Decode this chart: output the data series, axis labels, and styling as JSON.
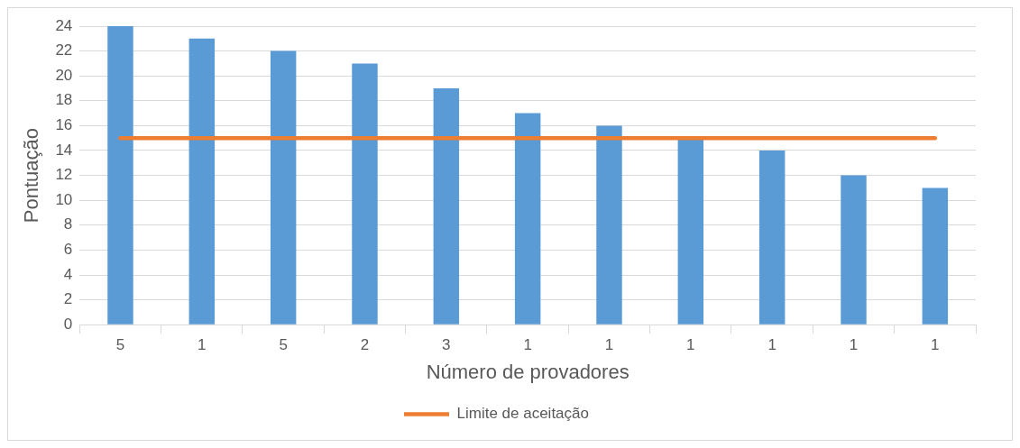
{
  "chart_data": {
    "type": "bar",
    "xlabel": "Número de provadores",
    "ylabel": "Pontuação",
    "categories": [
      "5",
      "1",
      "5",
      "2",
      "3",
      "1",
      "1",
      "1",
      "1",
      "1",
      "1"
    ],
    "series": [
      {
        "color": "#5b9bd5",
        "values": [
          24,
          23,
          22,
          21,
          19,
          17,
          16,
          15,
          14,
          12,
          11
        ]
      },
      {
        "type": "line",
        "name": "Limite de aceitação",
        "color": "#ed7d31",
        "values": [
          15,
          15,
          15,
          15,
          15,
          15,
          15,
          15,
          15,
          15,
          15
        ]
      }
    ],
    "ylim": [
      0,
      24
    ],
    "yticks": [
      0,
      2,
      4,
      6,
      8,
      10,
      12,
      14,
      16,
      18,
      20,
      22,
      24
    ],
    "grid": "y",
    "legend": "bottom"
  }
}
